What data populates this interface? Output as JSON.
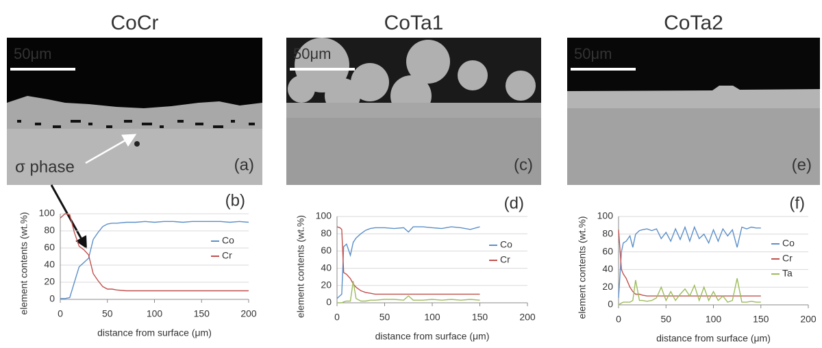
{
  "panels": [
    {
      "title": "CoCr",
      "scale_bar": "50μm",
      "image_label": "(a)",
      "annotation": "σ phase"
    },
    {
      "title": "CoTa1",
      "scale_bar": "50μm",
      "image_label": "(c)"
    },
    {
      "title": "CoTa2",
      "scale_bar": "50μm",
      "image_label": "(e)"
    }
  ],
  "chart_data": [
    {
      "type": "line",
      "panel_label": "(b)",
      "x_label": "distance from surface (μm)",
      "y_label": "element contents (wt.%)",
      "xlim": [
        0,
        200
      ],
      "ylim": [
        0,
        100
      ],
      "xticks": [
        0,
        50,
        100,
        150,
        200
      ],
      "yticks": [
        0,
        20,
        40,
        60,
        80,
        100
      ],
      "grid": true,
      "legend": "right",
      "x": [
        0,
        5,
        10,
        15,
        20,
        25,
        30,
        35,
        40,
        45,
        50,
        55,
        60,
        70,
        80,
        90,
        100,
        110,
        120,
        130,
        140,
        150,
        160,
        170,
        180,
        190,
        200
      ],
      "series": [
        {
          "name": "Co",
          "color": "#5b8fc9",
          "values": [
            1,
            1,
            2,
            20,
            38,
            43,
            48,
            70,
            78,
            85,
            88,
            89,
            89,
            90,
            90,
            91,
            90,
            91,
            91,
            90,
            91,
            91,
            91,
            91,
            90,
            91,
            90
          ]
        },
        {
          "name": "Cr",
          "color": "#c0504d",
          "values": [
            95,
            100,
            99,
            78,
            62,
            58,
            52,
            30,
            22,
            15,
            12,
            12,
            11,
            10,
            10,
            10,
            10,
            10,
            10,
            10,
            10,
            10,
            10,
            10,
            10,
            10,
            10
          ]
        }
      ]
    },
    {
      "type": "line",
      "panel_label": "(d)",
      "x_label": "distance from surface (μm)",
      "y_label": "element contents (wt.%)",
      "xlim": [
        0,
        200
      ],
      "ylim": [
        0,
        100
      ],
      "xticks": [
        0,
        50,
        100,
        150,
        200
      ],
      "yticks": [
        0,
        20,
        40,
        60,
        80,
        100
      ],
      "grid": true,
      "legend": "right",
      "x": [
        0,
        3,
        5,
        7,
        10,
        14,
        17,
        20,
        25,
        30,
        35,
        40,
        50,
        60,
        70,
        75,
        80,
        90,
        100,
        110,
        120,
        130,
        140,
        150
      ],
      "series": [
        {
          "name": "Co",
          "color": "#5b8fc9",
          "values": [
            5,
            8,
            10,
            65,
            68,
            55,
            70,
            75,
            80,
            84,
            86,
            87,
            87,
            86,
            87,
            82,
            88,
            88,
            87,
            86,
            88,
            87,
            85,
            88
          ]
        },
        {
          "name": "Cr",
          "color": "#c0504d",
          "values": [
            88,
            87,
            85,
            35,
            33,
            28,
            22,
            18,
            14,
            12,
            11,
            10,
            10,
            10,
            10,
            10,
            10,
            10,
            10,
            10,
            10,
            10,
            10,
            10
          ]
        },
        {
          "color": "#9bbb59",
          "values": [
            0,
            0,
            0,
            1,
            2,
            2,
            25,
            5,
            2,
            2,
            3,
            3,
            4,
            4,
            3,
            8,
            3,
            3,
            4,
            3,
            4,
            3,
            4,
            3
          ]
        }
      ]
    },
    {
      "type": "line",
      "panel_label": "(f)",
      "x_label": "distance from surface (μm)",
      "y_label": "element contents (wt.%)",
      "xlim": [
        0,
        200
      ],
      "ylim": [
        0,
        100
      ],
      "xticks": [
        0,
        50,
        100,
        150,
        200
      ],
      "yticks": [
        0,
        20,
        40,
        60,
        80,
        100
      ],
      "grid": true,
      "legend": "right",
      "x": [
        0,
        3,
        5,
        8,
        12,
        15,
        18,
        22,
        25,
        30,
        35,
        40,
        45,
        50,
        55,
        60,
        65,
        70,
        75,
        80,
        85,
        90,
        95,
        100,
        105,
        110,
        115,
        120,
        125,
        130,
        135,
        140,
        145,
        150
      ],
      "series": [
        {
          "name": "Co",
          "color": "#5b8fc9",
          "values": [
            8,
            60,
            70,
            72,
            78,
            65,
            80,
            84,
            85,
            86,
            84,
            86,
            75,
            82,
            72,
            86,
            74,
            88,
            72,
            88,
            75,
            80,
            70,
            85,
            72,
            86,
            78,
            85,
            65,
            88,
            86,
            88,
            87,
            87
          ]
        },
        {
          "name": "Cr",
          "color": "#c0504d",
          "values": [
            85,
            40,
            35,
            30,
            20,
            15,
            12,
            12,
            11,
            10,
            10,
            10,
            10,
            10,
            10,
            10,
            10,
            10,
            10,
            10,
            10,
            10,
            10,
            10,
            10,
            10,
            10,
            10,
            10,
            10,
            10,
            10,
            10,
            10
          ]
        },
        {
          "name": "Ta",
          "color": "#9bbb59",
          "values": [
            0,
            2,
            3,
            3,
            3,
            5,
            28,
            5,
            5,
            4,
            5,
            8,
            20,
            5,
            15,
            5,
            12,
            18,
            10,
            22,
            5,
            20,
            5,
            15,
            5,
            10,
            3,
            5,
            30,
            3,
            3,
            4,
            3,
            3
          ]
        }
      ]
    }
  ]
}
